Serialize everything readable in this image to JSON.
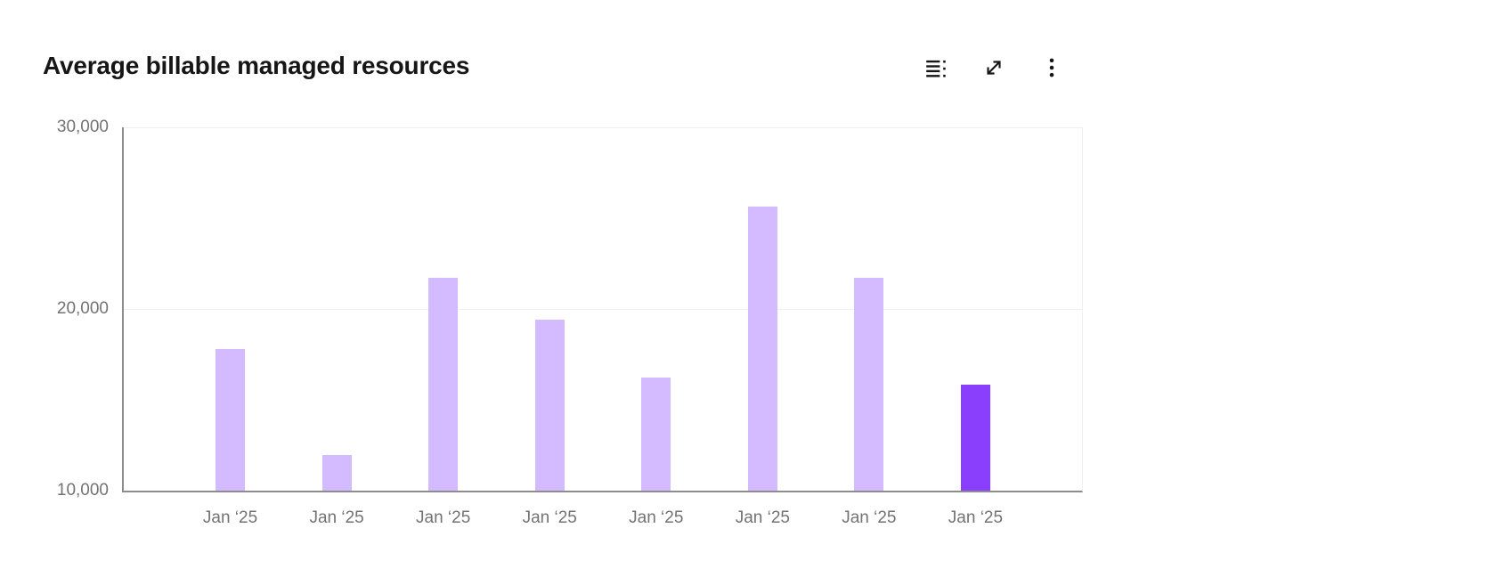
{
  "header": {
    "title": "Average billable managed resources",
    "toolbar": {
      "icons": [
        "data-table-icon",
        "expand-icon",
        "kebab-menu-icon"
      ]
    }
  },
  "colors": {
    "bar": "#d4bbff",
    "bar_highlight": "#8a3ffc",
    "axis_line": "#8d8d8d",
    "gridline": "#f0f0f0",
    "tick_label": "#737373",
    "title": "#161616",
    "icon": "#161616"
  },
  "chart_data": {
    "type": "bar",
    "title": "Average billable managed resources",
    "categories": [
      "Jan ‘25",
      "Jan ‘25",
      "Jan ‘25",
      "Jan ‘25",
      "Jan ‘25",
      "Jan ‘25",
      "Jan ‘25",
      "Jan ‘25"
    ],
    "values": [
      17800,
      11950,
      21700,
      19400,
      16250,
      25650,
      21700,
      15850
    ],
    "highlighted_index": 7,
    "xlabel": "",
    "ylabel": "",
    "ylim": [
      10000,
      30000
    ],
    "yticks": [
      10000,
      20000,
      30000
    ],
    "ytick_labels": [
      "10,000",
      "20,000",
      "30,000"
    ],
    "grid": "horizontal",
    "legend": "none"
  }
}
